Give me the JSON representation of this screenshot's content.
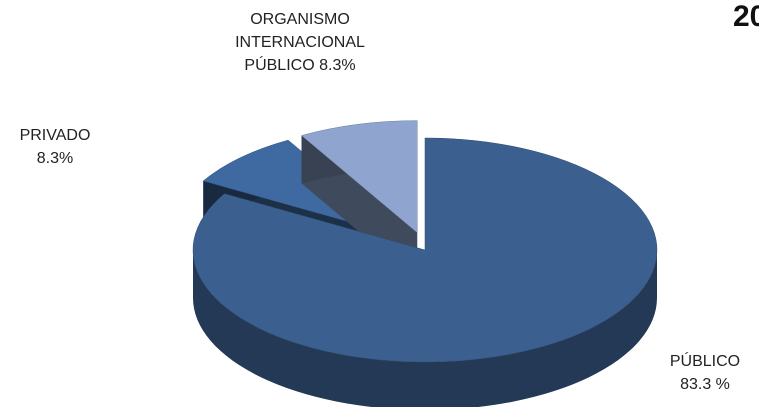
{
  "chart_data": {
    "type": "pie",
    "title": "20",
    "categories": [
      "PÚBLICO",
      "PRIVADO",
      "ORGANISMO INTERNACIONAL PÚBLICO"
    ],
    "values": [
      83.3,
      8.3,
      8.3
    ],
    "value_labels": [
      "83.3 %",
      "8.3%",
      "8.3%"
    ],
    "colors": [
      "#3b5f8e",
      "#3f6aa1",
      "#8fa5cf"
    ]
  }
}
